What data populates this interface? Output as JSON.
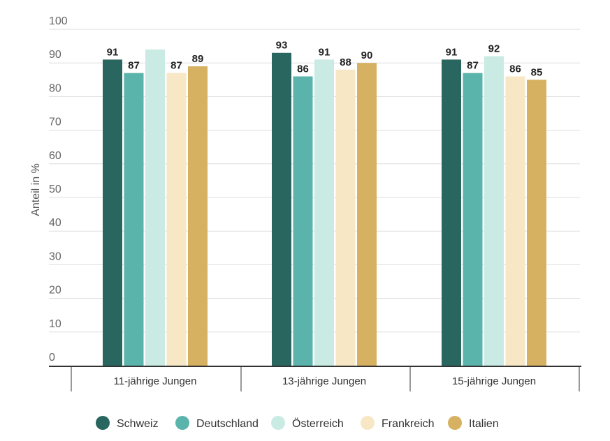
{
  "chart_data": {
    "type": "bar",
    "categories": [
      "11-jährige Jungen",
      "13-jährige Jungen",
      "15-jährige Jungen"
    ],
    "series": [
      {
        "name": "Schweiz",
        "color": "#2a6660",
        "values": [
          91,
          93,
          91
        ],
        "labels": [
          "91",
          "93",
          "91"
        ]
      },
      {
        "name": "Deutschland",
        "color": "#5ab4ab",
        "values": [
          87,
          86,
          87
        ],
        "labels": [
          "87",
          "86",
          "87"
        ]
      },
      {
        "name": "Österreich",
        "color": "#c9ebe4",
        "values": [
          94,
          91,
          92
        ],
        "labels": [
          "",
          "91",
          "92"
        ]
      },
      {
        "name": "Frankreich",
        "color": "#f7e7c4",
        "values": [
          87,
          88,
          86
        ],
        "labels": [
          "87",
          "88",
          "86"
        ]
      },
      {
        "name": "Italien",
        "color": "#d6b161",
        "values": [
          89,
          90,
          85
        ],
        "labels": [
          "89",
          "90",
          "85"
        ]
      }
    ],
    "ylabel": "Anteil in %",
    "ylim": [
      0,
      100
    ],
    "yticks": [
      0,
      10,
      20,
      30,
      40,
      50,
      60,
      70,
      80,
      90,
      100
    ],
    "grid": true,
    "legend_position": "bottom"
  }
}
